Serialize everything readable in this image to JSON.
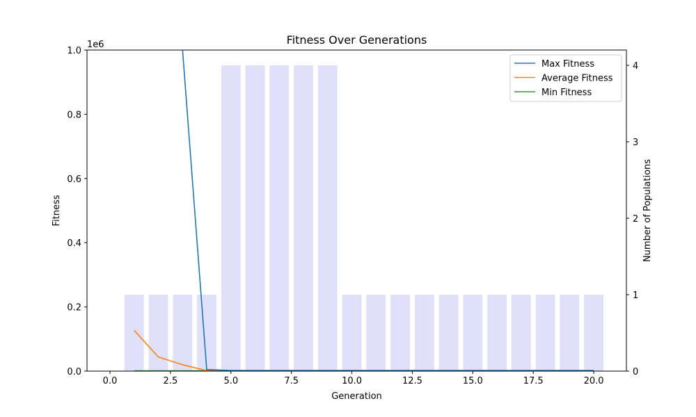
{
  "chart_data": {
    "type": "line",
    "title": "Fitness Over Generations",
    "xlabel": "Generation",
    "ylabel": "Fitness",
    "y2label": "Number of Populations",
    "y_offset_text": "1e6",
    "xlim": [
      -0.95,
      21.35
    ],
    "ylim": [
      0,
      1000000
    ],
    "y2lim": [
      0,
      4.2
    ],
    "x_ticks": [
      0.0,
      2.5,
      5.0,
      7.5,
      10.0,
      12.5,
      15.0,
      17.5,
      20.0
    ],
    "x_tick_labels": [
      "0.0",
      "2.5",
      "5.0",
      "7.5",
      "10.0",
      "12.5",
      "15.0",
      "17.5",
      "20.0"
    ],
    "y_ticks": [
      0,
      200000,
      400000,
      600000,
      800000,
      1000000
    ],
    "y_tick_labels": [
      "0.0",
      "0.2",
      "0.4",
      "0.6",
      "0.8",
      "1.0"
    ],
    "y2_ticks": [
      0,
      1,
      2,
      3,
      4
    ],
    "y2_tick_labels": [
      "0",
      "1",
      "2",
      "3",
      "4"
    ],
    "grid": false,
    "legend_position": "top-right",
    "x": [
      1,
      2,
      3,
      4,
      5,
      6,
      7,
      8,
      9,
      10,
      11,
      12,
      13,
      14,
      15,
      16,
      17,
      18,
      19,
      20
    ],
    "series": [
      {
        "name": "Max Fitness",
        "color": "#1f77b4",
        "values": [
          null,
          null,
          1000000,
          5000,
          2000,
          2000,
          2000,
          2000,
          2000,
          2000,
          2000,
          2000,
          2000,
          2000,
          2000,
          2000,
          2000,
          2000,
          2000,
          2000
        ]
      },
      {
        "name": "Average Fitness",
        "color": "#ff7f0e",
        "values": [
          127000,
          44000,
          20000,
          1500,
          1000,
          1000,
          1000,
          1000,
          1000,
          1000,
          1000,
          1000,
          1000,
          1000,
          1000,
          1000,
          1000,
          1000,
          1000,
          1000
        ]
      },
      {
        "name": "Min Fitness",
        "color": "#2ca02c",
        "values": [
          1000,
          1000,
          1000,
          1000,
          1000,
          1000,
          1000,
          1000,
          1000,
          1000,
          1000,
          1000,
          1000,
          1000,
          1000,
          1000,
          1000,
          1000,
          1000,
          1000
        ]
      }
    ],
    "bars": {
      "axis": "y2",
      "color": "#e0e0fa",
      "width": 0.8,
      "values": [
        1,
        1,
        1,
        1,
        4,
        4,
        4,
        4,
        4,
        1,
        1,
        1,
        1,
        1,
        1,
        1,
        1,
        1,
        1,
        1
      ]
    }
  }
}
